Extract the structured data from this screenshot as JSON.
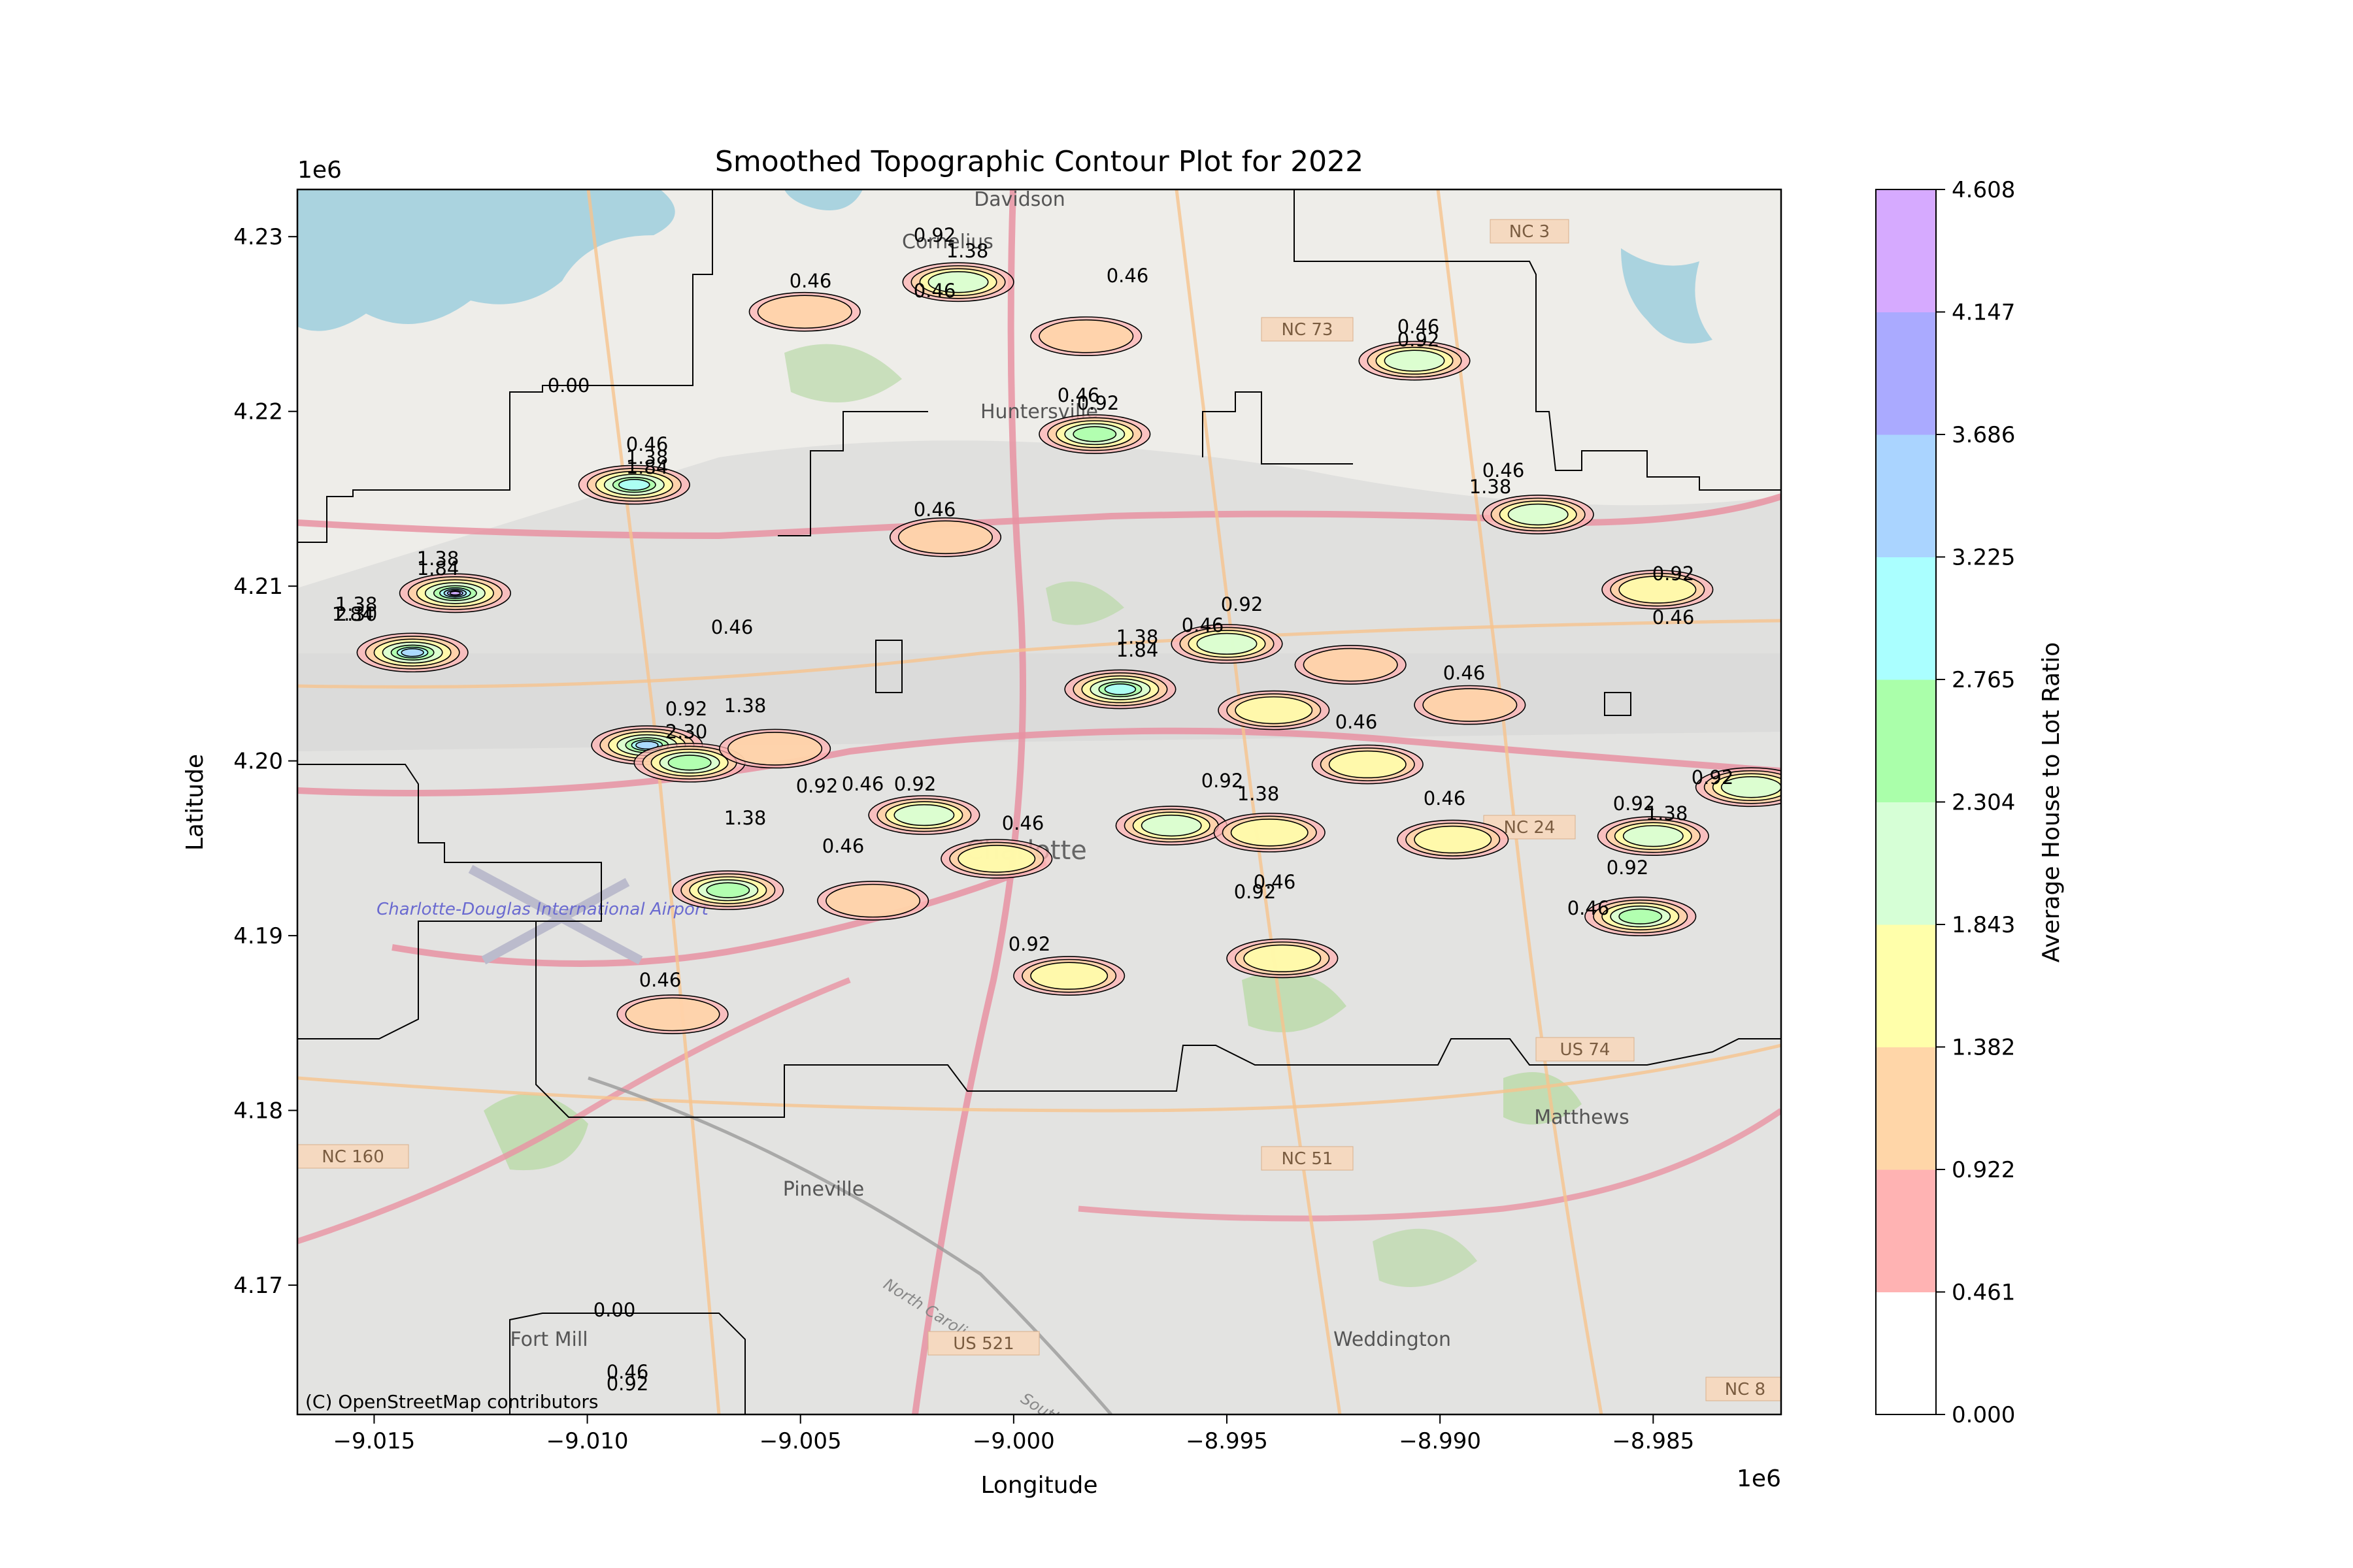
{
  "chart_data": {
    "type": "contour",
    "title": "Smoothed Topographic Contour Plot for 2022",
    "xlabel": "Longitude",
    "ylabel": "Latitude",
    "x_offset_label": "1e6",
    "y_offset_label": "1e6",
    "xlim": [
      -9.0168,
      -8.982
    ],
    "ylim": [
      4.1626,
      4.2327
    ],
    "x_ticks": [
      -9.015,
      -9.01,
      -9.005,
      -9.0,
      -8.995,
      -8.99,
      -8.985
    ],
    "x_tick_labels": [
      "−9.015",
      "−9.010",
      "−9.005",
      "−9.000",
      "−8.995",
      "−8.990",
      "−8.985"
    ],
    "y_ticks": [
      4.17,
      4.18,
      4.19,
      4.2,
      4.21,
      4.22,
      4.23
    ],
    "y_tick_labels": [
      "4.17",
      "4.18",
      "4.19",
      "4.20",
      "4.21",
      "4.22",
      "4.23"
    ],
    "colorbar": {
      "label": "Average House to Lot Ratio",
      "levels": [
        0.0,
        0.461,
        0.922,
        1.382,
        1.843,
        2.304,
        2.765,
        3.225,
        3.686,
        4.147,
        4.608
      ],
      "tick_labels": [
        "0.000",
        "0.461",
        "0.922",
        "1.382",
        "1.843",
        "2.304",
        "2.765",
        "3.225",
        "3.686",
        "4.147",
        "4.608"
      ],
      "colors": [
        "#ffffff",
        "#ffb3b3",
        "#ffd6a8",
        "#ffffaa",
        "#d6ffd6",
        "#aaffaa",
        "#aaffff",
        "#aad4ff",
        "#aaaaff",
        "#d6aaff"
      ]
    },
    "contour_label_values": [
      "0.00",
      "0.46",
      "0.92",
      "1.38",
      "1.84",
      "2.30"
    ],
    "attribution": "(C) OpenStreetMap contributors",
    "map_place_labels": [
      "Davidson",
      "Cornelius",
      "Huntersville",
      "Charlotte",
      "Charlotte-Douglas International Airport",
      "Matthews",
      "Pineville",
      "Weddington",
      "Fort Mill",
      "North Carolina",
      "South"
    ],
    "map_road_labels": [
      "NC 3",
      "NC 73",
      "NC 24",
      "NC 51",
      "NC 160",
      "US 74",
      "US 521",
      "NC 8"
    ],
    "hotspots": [
      {
        "x": -9.0141,
        "y": 4.2062,
        "peak": 3.2
      },
      {
        "x": -9.0131,
        "y": 4.2096,
        "peak": 4.1
      },
      {
        "x": -9.0089,
        "y": 4.2158,
        "peak": 2.6
      },
      {
        "x": -9.0086,
        "y": 4.2009,
        "peak": 2.9
      },
      {
        "x": -9.0076,
        "y": 4.1999,
        "peak": 2.3
      },
      {
        "x": -9.0056,
        "y": 4.2007,
        "peak": 0.9
      },
      {
        "x": -9.0067,
        "y": 4.1926,
        "peak": 2.1
      },
      {
        "x": -9.0021,
        "y": 4.1969,
        "peak": 1.6
      },
      {
        "x": -9.0033,
        "y": 4.192,
        "peak": 0.9
      },
      {
        "x": -8.9975,
        "y": 4.2041,
        "peak": 2.7
      },
      {
        "x": -8.995,
        "y": 4.2067,
        "peak": 1.6
      },
      {
        "x": -8.9939,
        "y": 4.2029,
        "peak": 1.1
      },
      {
        "x": -8.9963,
        "y": 4.1963,
        "peak": 1.6
      },
      {
        "x": -8.994,
        "y": 4.1959,
        "peak": 1.3
      },
      {
        "x": -9.0004,
        "y": 4.1944,
        "peak": 1.0
      },
      {
        "x": -8.9981,
        "y": 4.2187,
        "peak": 2.0
      },
      {
        "x": -8.9906,
        "y": 4.2229,
        "peak": 1.5
      },
      {
        "x": -9.0013,
        "y": 4.2274,
        "peak": 1.5
      },
      {
        "x": -8.9877,
        "y": 4.2141,
        "peak": 1.6
      },
      {
        "x": -8.9849,
        "y": 4.2098,
        "peak": 1.2
      },
      {
        "x": -8.985,
        "y": 4.1957,
        "peak": 1.6
      },
      {
        "x": -8.9853,
        "y": 4.1911,
        "peak": 2.2
      },
      {
        "x": -8.9827,
        "y": 4.1985,
        "peak": 1.5
      },
      {
        "x": -8.9921,
        "y": 4.2055,
        "peak": 0.9
      },
      {
        "x": -8.9917,
        "y": 4.1998,
        "peak": 1.1
      },
      {
        "x": -8.9897,
        "y": 4.1955,
        "peak": 1.2
      },
      {
        "x": -8.9937,
        "y": 4.1887,
        "peak": 1.0
      },
      {
        "x": -9.0049,
        "y": 4.2257,
        "peak": 0.9
      },
      {
        "x": -8.9983,
        "y": 4.2243,
        "peak": 0.9
      },
      {
        "x": -9.0016,
        "y": 4.2128,
        "peak": 0.9
      },
      {
        "x": -9.008,
        "y": 4.1855,
        "peak": 0.9
      },
      {
        "x": -8.9893,
        "y": 4.2032,
        "peak": 0.8
      },
      {
        "x": -8.9987,
        "y": 4.1877,
        "peak": 1.0
      }
    ],
    "grid": false,
    "legend": "colorbar right"
  }
}
